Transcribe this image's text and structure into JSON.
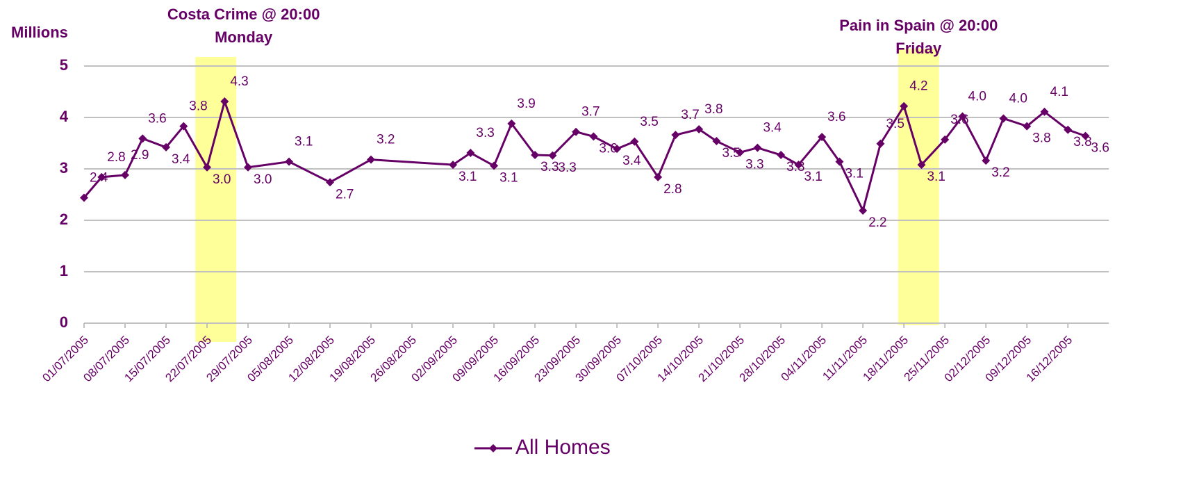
{
  "chart_data": {
    "type": "line",
    "y_label": "Millions",
    "x": [
      "01/07/2005",
      "04/07/2005",
      "08/07/2005",
      "11/07/2005",
      "15/07/2005",
      "18/07/2005",
      "22/07/2005",
      "25/07/2005",
      "29/07/2005",
      "05/08/2005",
      "12/08/2005",
      "19/08/2005",
      "02/09/2005",
      "05/09/2005",
      "09/09/2005",
      "12/09/2005",
      "16/09/2005",
      "19/09/2005",
      "23/09/2005",
      "26/09/2005",
      "30/09/2005",
      "03/10/2005",
      "07/10/2005",
      "10/10/2005",
      "14/10/2005",
      "17/10/2005",
      "21/10/2005",
      "24/10/2005",
      "28/10/2005",
      "31/10/2005",
      "04/11/2005",
      "07/11/2005",
      "11/11/2005",
      "14/11/2005",
      "18/11/2005",
      "21/11/2005",
      "25/11/2005",
      "28/11/2005",
      "02/12/2005",
      "05/12/2005",
      "09/12/2005",
      "12/12/2005",
      "16/12/2005",
      "19/12/2005"
    ],
    "series": [
      {
        "name": "All Homes",
        "color": "#660066",
        "values": [
          2.44,
          2.84,
          2.88,
          3.59,
          3.42,
          3.83,
          3.03,
          4.31,
          3.03,
          3.14,
          2.74,
          3.18,
          3.08,
          3.31,
          3.06,
          3.88,
          3.27,
          3.26,
          3.72,
          3.63,
          3.39,
          3.53,
          2.84,
          3.66,
          3.77,
          3.54,
          3.32,
          3.41,
          3.27,
          3.08,
          3.62,
          3.14,
          2.19,
          3.49,
          4.22,
          3.08,
          3.57,
          4.02,
          3.16,
          3.98,
          3.83,
          4.11,
          3.76,
          3.64
        ],
        "value_labels": [
          "2.4",
          "2.8",
          "2.9",
          "3.6",
          "3.4",
          "3.8",
          "3.0",
          "4.3",
          "3.0",
          "3.1",
          "2.7",
          "3.2",
          "3.1",
          "3.3",
          "3.1",
          "3.9",
          "3.3",
          "3.3",
          "3.7",
          "3.6",
          "3.4",
          "3.5",
          "2.8",
          "3.7",
          "3.8",
          "3.5",
          "3.3",
          "3.4",
          "3.3",
          "3.1",
          "3.6",
          "3.1",
          "2.2",
          "3.5",
          "4.2",
          "3.1",
          "3.6",
          "4.0",
          "3.2",
          "4.0",
          "3.8",
          "4.1",
          "3.8",
          "3.6"
        ]
      }
    ],
    "xlim": [
      "01/07/2005",
      "23/12/2005"
    ],
    "xticks": [
      "01/07/2005",
      "08/07/2005",
      "15/07/2005",
      "22/07/2005",
      "29/07/2005",
      "05/08/2005",
      "12/08/2005",
      "19/08/2005",
      "26/08/2005",
      "02/09/2005",
      "09/09/2005",
      "16/09/2005",
      "23/09/2005",
      "30/09/2005",
      "07/10/2005",
      "14/10/2005",
      "21/10/2005",
      "28/10/2005",
      "04/11/2005",
      "11/11/2005",
      "18/11/2005",
      "25/11/2005",
      "02/12/2005",
      "09/12/2005",
      "16/12/2005"
    ],
    "ylim": [
      0,
      5
    ],
    "yticks": [
      0,
      1,
      2,
      3,
      4,
      5
    ],
    "grid": true,
    "legend": "bottom",
    "highlights": [
      {
        "lines": [
          "Costa Crime @ 20:00",
          "Monday"
        ],
        "from": "20/07/2005",
        "to": "27/07/2005",
        "color": "#ffff99"
      },
      {
        "lines": [
          "Pain in Spain @ 20:00",
          "Friday"
        ],
        "from": "17/11/2005",
        "to": "24/11/2005",
        "color": "#ffff99"
      }
    ]
  }
}
